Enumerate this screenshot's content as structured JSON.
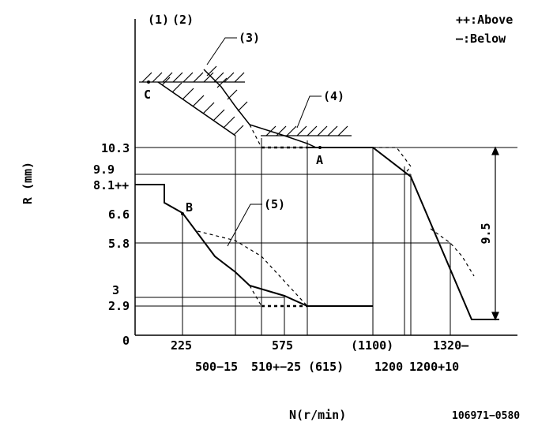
{
  "header": {
    "ref_1": "(1)",
    "ref_2": "(2)",
    "legend_above": "++:Above",
    "legend_below": "—:Below"
  },
  "axes": {
    "y_label": "R (mm)",
    "x_label": "N(r/min)",
    "origin": "0"
  },
  "y_ticks": [
    "10.3",
    "9.9",
    "8.1++",
    "6.6",
    "5.8",
    "3",
    "2.9"
  ],
  "x_ticks": [
    "225",
    "500−15",
    "575",
    "510+−25",
    "(615)",
    "(1100)",
    "1200",
    "1200+10",
    "1320—"
  ],
  "callouts": [
    "(3)",
    "(4)",
    "(5)"
  ],
  "points": [
    "A",
    "B",
    "C"
  ],
  "dimension": "9.5",
  "footer": {
    "drawing_no": "106971−0580"
  }
}
